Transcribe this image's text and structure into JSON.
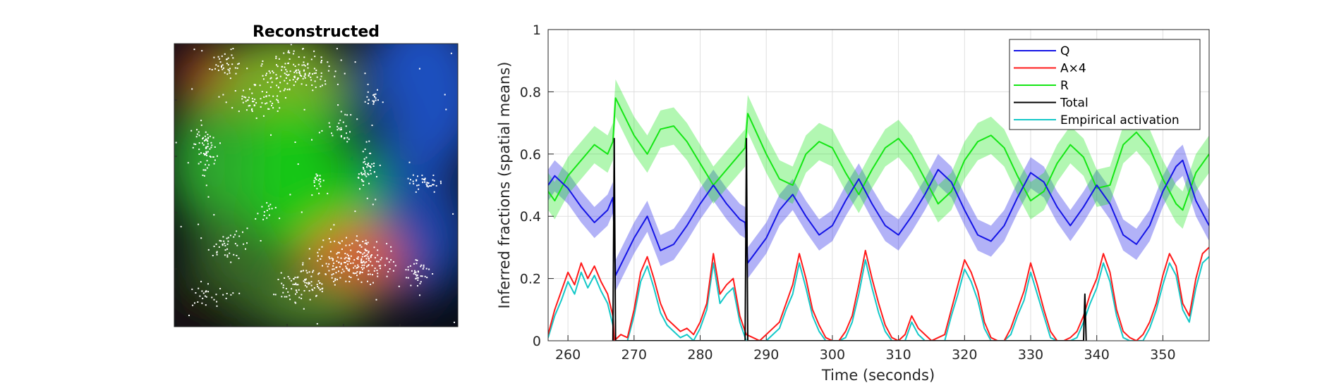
{
  "image_panel": {
    "title": "Reconstructed"
  },
  "chart_data": {
    "type": "line",
    "xlabel": "Time (seconds)",
    "ylabel": "Inferred fractions (spatial means)",
    "xlim": [
      257,
      357
    ],
    "ylim": [
      0,
      1
    ],
    "xticks": [
      260,
      270,
      280,
      290,
      300,
      310,
      320,
      330,
      340,
      350
    ],
    "yticks": [
      0,
      0.2,
      0.4,
      0.6,
      0.8,
      1
    ],
    "ytick_labels": [
      "0",
      "0.2",
      "0.4",
      "0.6",
      "0.8",
      "1"
    ],
    "grid": true,
    "legend_position": "top-right",
    "series": [
      {
        "name": "Q",
        "color": "#1414e6",
        "band": 0.05,
        "x": [
          257,
          258,
          260,
          262,
          264,
          266,
          266.8,
          267.2,
          270,
          272,
          274,
          276,
          278,
          280,
          282,
          284,
          286,
          286.8,
          287.2,
          290,
          292,
          294,
          296,
          298,
          300,
          302,
          304,
          306,
          308,
          310,
          312,
          314,
          316,
          318,
          320,
          322,
          324,
          326,
          328,
          330,
          332,
          334,
          336,
          338,
          340,
          342,
          344,
          346,
          348,
          350,
          352,
          353,
          355,
          357
        ],
        "y": [
          0.5,
          0.53,
          0.49,
          0.43,
          0.38,
          0.42,
          0.46,
          0.21,
          0.33,
          0.4,
          0.29,
          0.31,
          0.37,
          0.44,
          0.5,
          0.44,
          0.39,
          0.38,
          0.25,
          0.33,
          0.42,
          0.47,
          0.4,
          0.34,
          0.37,
          0.45,
          0.52,
          0.44,
          0.37,
          0.34,
          0.4,
          0.47,
          0.55,
          0.51,
          0.42,
          0.34,
          0.32,
          0.37,
          0.46,
          0.54,
          0.51,
          0.43,
          0.37,
          0.43,
          0.5,
          0.44,
          0.34,
          0.31,
          0.37,
          0.48,
          0.56,
          0.58,
          0.45,
          0.37
        ]
      },
      {
        "name": "A×4",
        "color": "#ff1a1a",
        "x": [
          257,
          258,
          259,
          260,
          261,
          262,
          263,
          264,
          265,
          266,
          266.8,
          267,
          268,
          269,
          270,
          271,
          272,
          273,
          274,
          275,
          276,
          277,
          278,
          279,
          280,
          281,
          282,
          283,
          284,
          285,
          286,
          286.8,
          287,
          288,
          289,
          290,
          291,
          292,
          293,
          294,
          295,
          296,
          297,
          298,
          299,
          300,
          301,
          302,
          303,
          304,
          305,
          306,
          307,
          308,
          309,
          310,
          311,
          312,
          313,
          314,
          315,
          316,
          317,
          318,
          319,
          320,
          321,
          322,
          323,
          324,
          325,
          326,
          327,
          328,
          329,
          330,
          331,
          332,
          333,
          334,
          335,
          336,
          337,
          338,
          339,
          340,
          341,
          342,
          343,
          344,
          345,
          346,
          347,
          348,
          349,
          350,
          351,
          352,
          353,
          354,
          355,
          356,
          357
        ],
        "y": [
          0.02,
          0.1,
          0.16,
          0.22,
          0.18,
          0.25,
          0.2,
          0.24,
          0.19,
          0.15,
          0.08,
          0.0,
          0.02,
          0.01,
          0.1,
          0.22,
          0.27,
          0.2,
          0.12,
          0.07,
          0.05,
          0.03,
          0.04,
          0.02,
          0.06,
          0.12,
          0.28,
          0.15,
          0.18,
          0.2,
          0.08,
          0.03,
          0.02,
          0.01,
          0.0,
          0.02,
          0.04,
          0.06,
          0.12,
          0.18,
          0.28,
          0.2,
          0.1,
          0.05,
          0.01,
          0.0,
          0.0,
          0.03,
          0.08,
          0.18,
          0.29,
          0.2,
          0.12,
          0.05,
          0.01,
          0.0,
          0.02,
          0.08,
          0.04,
          0.02,
          0.0,
          0.01,
          0.02,
          0.1,
          0.18,
          0.26,
          0.22,
          0.16,
          0.06,
          0.01,
          0.0,
          0.0,
          0.04,
          0.1,
          0.16,
          0.25,
          0.18,
          0.1,
          0.03,
          0.0,
          0.0,
          0.01,
          0.03,
          0.08,
          0.15,
          0.2,
          0.28,
          0.22,
          0.1,
          0.03,
          0.01,
          0.0,
          0.02,
          0.06,
          0.12,
          0.21,
          0.28,
          0.24,
          0.12,
          0.08,
          0.2,
          0.28,
          0.3
        ]
      },
      {
        "name": "R",
        "color": "#14e614",
        "band": 0.06,
        "x": [
          257,
          258,
          260,
          262,
          264,
          266,
          266.8,
          267.2,
          270,
          272,
          274,
          276,
          278,
          280,
          282,
          284,
          286,
          286.8,
          287.2,
          290,
          292,
          294,
          296,
          298,
          300,
          302,
          304,
          306,
          308,
          310,
          312,
          314,
          316,
          318,
          320,
          322,
          324,
          326,
          328,
          330,
          332,
          334,
          336,
          338,
          340,
          342,
          344,
          346,
          348,
          350,
          352,
          353,
          355,
          357
        ],
        "y": [
          0.48,
          0.45,
          0.53,
          0.58,
          0.63,
          0.6,
          0.64,
          0.78,
          0.66,
          0.6,
          0.68,
          0.69,
          0.64,
          0.57,
          0.5,
          0.55,
          0.6,
          0.62,
          0.73,
          0.6,
          0.52,
          0.5,
          0.6,
          0.64,
          0.62,
          0.54,
          0.47,
          0.55,
          0.62,
          0.65,
          0.6,
          0.52,
          0.44,
          0.48,
          0.58,
          0.64,
          0.66,
          0.62,
          0.53,
          0.45,
          0.48,
          0.57,
          0.63,
          0.59,
          0.49,
          0.5,
          0.63,
          0.67,
          0.62,
          0.52,
          0.44,
          0.42,
          0.54,
          0.6
        ]
      },
      {
        "name": "Total",
        "color": "#000000",
        "x": [
          266.8,
          267,
          267.2,
          286.8,
          287,
          287.2,
          338,
          338.2,
          338.4
        ],
        "y": [
          0.0,
          0.65,
          0.0,
          0.0,
          0.65,
          0.0,
          0.0,
          0.15,
          0.0
        ]
      },
      {
        "name": "Empirical activation",
        "color": "#14c8c8",
        "x": [
          257,
          258,
          259,
          260,
          261,
          262,
          263,
          264,
          265,
          266,
          266.8,
          267,
          268,
          269,
          270,
          271,
          272,
          273,
          274,
          275,
          276,
          277,
          278,
          279,
          280,
          281,
          282,
          283,
          284,
          285,
          286,
          286.8,
          287,
          288,
          289,
          290,
          291,
          292,
          293,
          294,
          295,
          296,
          297,
          298,
          299,
          300,
          301,
          302,
          303,
          304,
          305,
          306,
          307,
          308,
          309,
          310,
          311,
          312,
          313,
          314,
          315,
          316,
          317,
          318,
          319,
          320,
          321,
          322,
          323,
          324,
          325,
          326,
          327,
          328,
          329,
          330,
          331,
          332,
          333,
          334,
          335,
          336,
          337,
          338,
          339,
          340,
          341,
          342,
          343,
          344,
          345,
          346,
          347,
          348,
          349,
          350,
          351,
          352,
          353,
          354,
          355,
          356,
          357
        ],
        "y": [
          0.01,
          0.08,
          0.13,
          0.19,
          0.15,
          0.22,
          0.17,
          0.21,
          0.16,
          0.12,
          0.05,
          0.0,
          0.0,
          0.0,
          0.08,
          0.19,
          0.24,
          0.17,
          0.09,
          0.05,
          0.03,
          0.01,
          0.02,
          0.0,
          0.04,
          0.1,
          0.25,
          0.12,
          0.15,
          0.17,
          0.06,
          0.01,
          0.0,
          0.0,
          0.0,
          0.0,
          0.02,
          0.04,
          0.1,
          0.15,
          0.25,
          0.17,
          0.08,
          0.03,
          0.0,
          0.0,
          0.0,
          0.01,
          0.06,
          0.15,
          0.26,
          0.17,
          0.09,
          0.03,
          0.0,
          0.0,
          0.0,
          0.06,
          0.02,
          0.0,
          0.0,
          0.0,
          0.0,
          0.08,
          0.15,
          0.23,
          0.19,
          0.13,
          0.04,
          0.0,
          0.0,
          0.0,
          0.02,
          0.08,
          0.13,
          0.22,
          0.15,
          0.08,
          0.01,
          0.0,
          0.0,
          0.0,
          0.01,
          0.06,
          0.12,
          0.17,
          0.25,
          0.19,
          0.08,
          0.01,
          0.0,
          0.0,
          0.0,
          0.04,
          0.1,
          0.18,
          0.25,
          0.21,
          0.1,
          0.06,
          0.17,
          0.25,
          0.27
        ]
      }
    ]
  }
}
